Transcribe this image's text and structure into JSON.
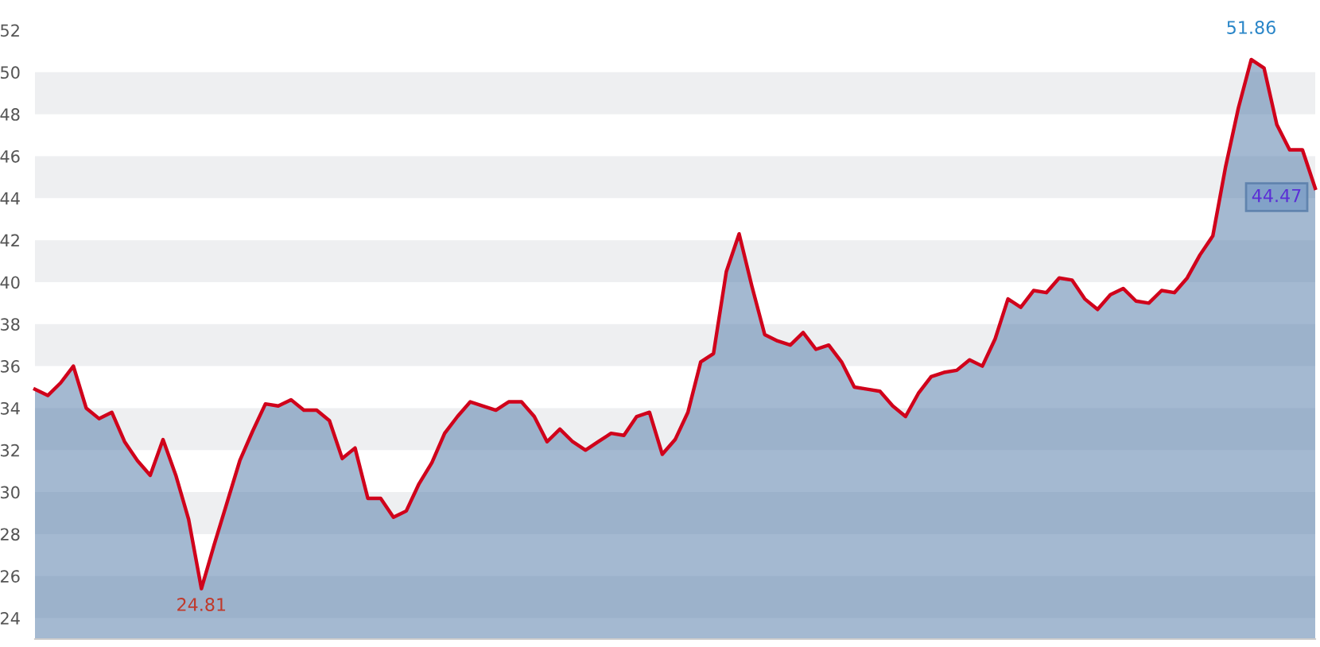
{
  "chart_data": {
    "type": "area",
    "categories": [
      null,
      null,
      null,
      null,
      null,
      null,
      null,
      null,
      null,
      null,
      null,
      null,
      null,
      null,
      null,
      null,
      null,
      null,
      null,
      null,
      null,
      null,
      null,
      null,
      null,
      null,
      null,
      null,
      null,
      null,
      null,
      null,
      null,
      null,
      null,
      null,
      null,
      null,
      null,
      null,
      null,
      null,
      null,
      null,
      null,
      null,
      null,
      null,
      null,
      null,
      null,
      null,
      null,
      null,
      null,
      null,
      null,
      null,
      null,
      null,
      null,
      null,
      null,
      null,
      null,
      null,
      null,
      null,
      null,
      null,
      null,
      null,
      null,
      null,
      null,
      null,
      null,
      null,
      null,
      null,
      null,
      null,
      null,
      null,
      null,
      null,
      null,
      null,
      null,
      null,
      null,
      null,
      null,
      null,
      null,
      null,
      null,
      null,
      null,
      null,
      null
    ],
    "series": [
      {
        "color": "#5a7fab",
        "values": [
          34.9,
          34.6,
          35.2,
          36.0,
          34.0,
          33.5,
          33.8,
          32.4,
          31.5,
          30.8,
          32.5,
          30.8,
          28.7,
          25.4,
          27.5,
          29.5,
          31.5,
          32.9,
          34.2,
          34.1,
          34.4,
          33.9,
          33.9,
          33.4,
          31.6,
          32.1,
          29.7,
          29.7,
          28.8,
          29.1,
          30.4,
          31.4,
          32.8,
          33.6,
          34.3,
          34.1,
          33.9,
          34.3,
          34.3,
          33.6,
          32.4,
          33.0,
          32.4,
          32.0,
          32.4,
          32.8,
          32.7,
          33.6,
          33.8,
          31.8,
          32.5,
          33.8,
          36.2,
          36.6,
          40.5,
          42.3,
          39.8,
          37.5,
          37.2,
          37.0,
          37.6,
          36.8,
          37.0,
          36.2,
          35.0,
          34.9,
          34.8,
          34.1,
          33.6,
          34.7,
          35.5,
          35.7,
          35.8,
          36.3,
          36.0,
          37.3,
          39.2,
          38.8,
          39.6,
          39.5,
          40.2,
          40.1,
          39.2,
          38.7,
          39.4,
          39.7,
          39.1,
          39.0,
          39.6,
          39.5,
          40.2,
          41.3,
          42.2,
          45.5,
          48.3,
          50.6,
          50.2,
          47.5,
          46.3,
          46.3,
          44.47
        ]
      },
      {
        "type": "line",
        "color": "#d0021b",
        "values": [
          34.9,
          34.6,
          35.2,
          36.0,
          34.0,
          33.5,
          33.8,
          32.4,
          31.5,
          30.8,
          32.5,
          30.8,
          28.7,
          25.4,
          27.5,
          29.5,
          31.5,
          32.9,
          34.2,
          34.1,
          34.4,
          33.9,
          33.9,
          33.4,
          31.6,
          32.1,
          29.7,
          29.7,
          28.8,
          29.1,
          30.4,
          31.4,
          32.8,
          33.6,
          34.3,
          34.1,
          33.9,
          34.3,
          34.3,
          33.6,
          32.4,
          33.0,
          32.4,
          32.0,
          32.4,
          32.8,
          32.7,
          33.6,
          33.8,
          31.8,
          32.5,
          33.8,
          36.2,
          36.6,
          40.5,
          42.3,
          39.8,
          37.5,
          37.2,
          37.0,
          37.6,
          36.8,
          37.0,
          36.2,
          35.0,
          34.9,
          34.8,
          34.1,
          33.6,
          34.7,
          35.5,
          35.7,
          35.8,
          36.3,
          36.0,
          37.3,
          39.2,
          38.8,
          39.6,
          39.5,
          40.2,
          40.1,
          39.2,
          38.7,
          39.4,
          39.7,
          39.1,
          39.0,
          39.6,
          39.5,
          40.2,
          41.3,
          42.2,
          45.5,
          48.3,
          50.6,
          50.2,
          47.5,
          46.3,
          46.3,
          44.47
        ]
      }
    ],
    "ylim": [
      23,
      52
    ],
    "yticks": [
      24,
      26,
      28,
      30,
      32,
      34,
      36,
      38,
      40,
      42,
      44,
      46,
      48,
      50,
      52
    ],
    "tick_labels": "y",
    "annotations": [
      "51.86",
      "24.81",
      "44.47"
    ]
  }
}
